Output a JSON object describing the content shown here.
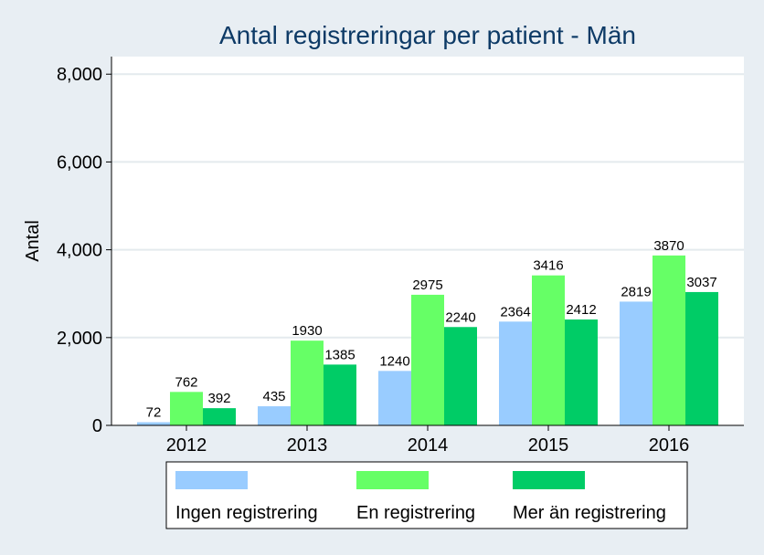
{
  "chart_data": {
    "type": "bar",
    "title": "Antal registreringar per patient - Män",
    "xlabel": "",
    "ylabel": "Antal",
    "ylim": [
      0,
      8400
    ],
    "yticks": [
      0,
      2000,
      4000,
      6000,
      8000
    ],
    "ytick_labels": [
      "0",
      "2,000",
      "4,000",
      "6,000",
      "8,000"
    ],
    "grid": true,
    "legend_position": "bottom",
    "categories": [
      "2012",
      "2013",
      "2014",
      "2015",
      "2016"
    ],
    "series": [
      {
        "name": "Ingen registrering",
        "color": "#99ccff",
        "values": [
          72,
          435,
          1240,
          2364,
          2819
        ]
      },
      {
        "name": "En registrering",
        "color": "#66ff66",
        "values": [
          762,
          1930,
          2975,
          3416,
          3870
        ]
      },
      {
        "name": "Mer än registrering",
        "color": "#00cc66",
        "values": [
          392,
          1385,
          2240,
          2412,
          3037
        ]
      }
    ]
  },
  "colors": {
    "page_background": "#e8eef3",
    "plot_background": "#ffffff",
    "gridline": "#e4eaee",
    "title": "#0d3a66",
    "text": "#000000"
  }
}
